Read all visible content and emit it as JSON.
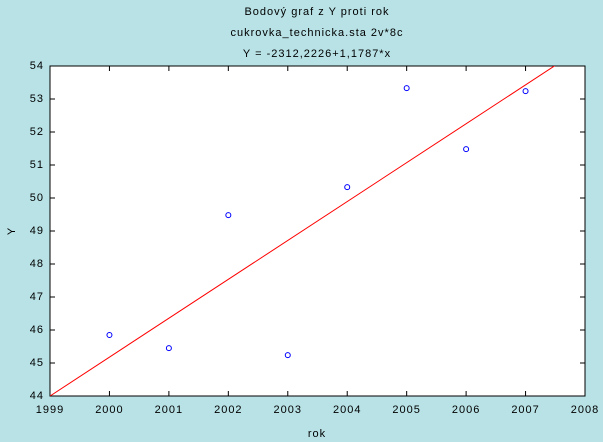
{
  "chart_data": {
    "type": "scatter",
    "title": "Bodový graf z Y proti rok",
    "subtitle": "cukrovka_technicka.sta 2v*8c",
    "annotation": "Y = -2312,2226+1,1787*x",
    "x_label": "rok",
    "y_label": "Y",
    "x": [
      2000,
      2001,
      2002,
      2003,
      2004,
      2005,
      2006,
      2007
    ],
    "values": [
      45.85,
      45.45,
      49.48,
      45.24,
      50.33,
      53.33,
      51.48,
      53.24
    ],
    "color": "#0000ff",
    "fit": {
      "intercept": -2312.2226,
      "slope": 1.1787,
      "color": "#ff0000"
    },
    "xlim": [
      1999,
      2008
    ],
    "xticks": [
      1999,
      2000,
      2001,
      2002,
      2003,
      2004,
      2005,
      2006,
      2007,
      2008
    ],
    "ylim": [
      44,
      54
    ],
    "yticks": [
      44,
      45,
      46,
      47,
      48,
      49,
      50,
      51,
      52,
      53,
      54
    ],
    "grid": false
  }
}
